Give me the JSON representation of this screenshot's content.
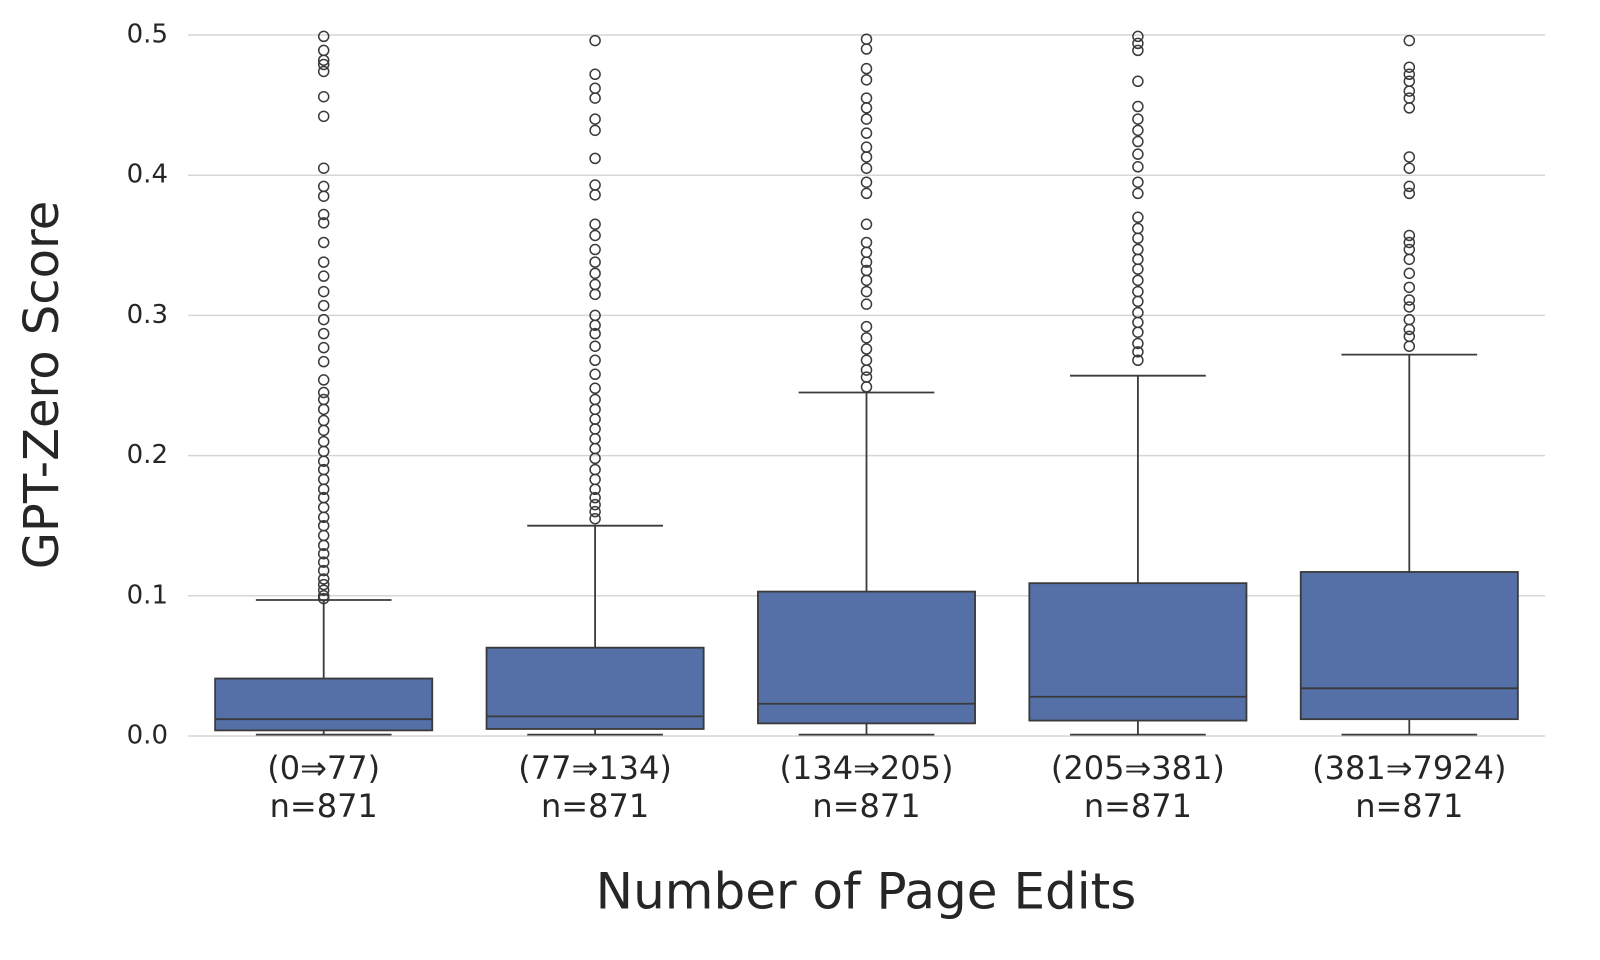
{
  "chart_data": {
    "type": "box",
    "x_label": "Number of Page Edits",
    "y_label": "GPT-Zero Score",
    "categories": [
      "(0⇒77)",
      "(77⇒134)",
      "(134⇒205)",
      "(205⇒381)",
      "(381⇒7924)"
    ],
    "count_labels": [
      "n=871",
      "n=871",
      "n=871",
      "n=871",
      "n=871"
    ],
    "color": "#5470a6",
    "edge_color": "#3a3a3a",
    "grid": true,
    "ylim": [
      0,
      0.5
    ],
    "yticks": [
      {
        "value": 0,
        "label": "0.0"
      },
      0.1,
      0.2,
      0.3,
      0.4,
      0.5
    ],
    "boxes": [
      {
        "min": 0.001,
        "q1": 0.004,
        "median": 0.012,
        "q3": 0.041,
        "max": 0.097,
        "outliers": [
          0.499,
          0.489,
          0.482,
          0.479,
          0.474,
          0.456,
          0.442,
          0.405,
          0.392,
          0.385,
          0.372,
          0.366,
          0.352,
          0.338,
          0.328,
          0.317,
          0.307,
          0.297,
          0.287,
          0.277,
          0.267,
          0.254,
          0.245,
          0.24,
          0.233,
          0.225,
          0.218,
          0.21,
          0.203,
          0.196,
          0.19,
          0.183,
          0.176,
          0.17,
          0.163,
          0.156,
          0.15,
          0.143,
          0.136,
          0.13,
          0.124,
          0.118,
          0.112,
          0.108,
          0.104,
          0.1,
          0.098
        ]
      },
      {
        "min": 0.001,
        "q1": 0.005,
        "median": 0.014,
        "q3": 0.063,
        "max": 0.15,
        "outliers": [
          0.496,
          0.472,
          0.462,
          0.455,
          0.44,
          0.432,
          0.412,
          0.393,
          0.386,
          0.365,
          0.357,
          0.347,
          0.338,
          0.33,
          0.322,
          0.315,
          0.3,
          0.293,
          0.287,
          0.278,
          0.268,
          0.258,
          0.248,
          0.24,
          0.233,
          0.226,
          0.219,
          0.212,
          0.205,
          0.198,
          0.19,
          0.183,
          0.176,
          0.17,
          0.165,
          0.16,
          0.155
        ]
      },
      {
        "min": 0.001,
        "q1": 0.009,
        "median": 0.023,
        "q3": 0.103,
        "max": 0.245,
        "outliers": [
          0.497,
          0.49,
          0.476,
          0.468,
          0.455,
          0.448,
          0.44,
          0.43,
          0.42,
          0.413,
          0.405,
          0.395,
          0.387,
          0.365,
          0.352,
          0.345,
          0.338,
          0.332,
          0.325,
          0.317,
          0.308,
          0.292,
          0.284,
          0.276,
          0.268,
          0.261,
          0.256,
          0.249
        ]
      },
      {
        "min": 0.001,
        "q1": 0.011,
        "median": 0.028,
        "q3": 0.109,
        "max": 0.257,
        "outliers": [
          0.499,
          0.494,
          0.489,
          0.467,
          0.449,
          0.44,
          0.432,
          0.424,
          0.415,
          0.406,
          0.395,
          0.387,
          0.37,
          0.362,
          0.355,
          0.347,
          0.34,
          0.333,
          0.325,
          0.317,
          0.31,
          0.302,
          0.295,
          0.288,
          0.28,
          0.274,
          0.268
        ]
      },
      {
        "min": 0.001,
        "q1": 0.012,
        "median": 0.034,
        "q3": 0.117,
        "max": 0.272,
        "outliers": [
          0.496,
          0.477,
          0.472,
          0.467,
          0.46,
          0.455,
          0.448,
          0.413,
          0.405,
          0.392,
          0.387,
          0.357,
          0.352,
          0.347,
          0.34,
          0.33,
          0.32,
          0.311,
          0.306,
          0.297,
          0.29,
          0.285,
          0.278
        ]
      }
    ]
  }
}
